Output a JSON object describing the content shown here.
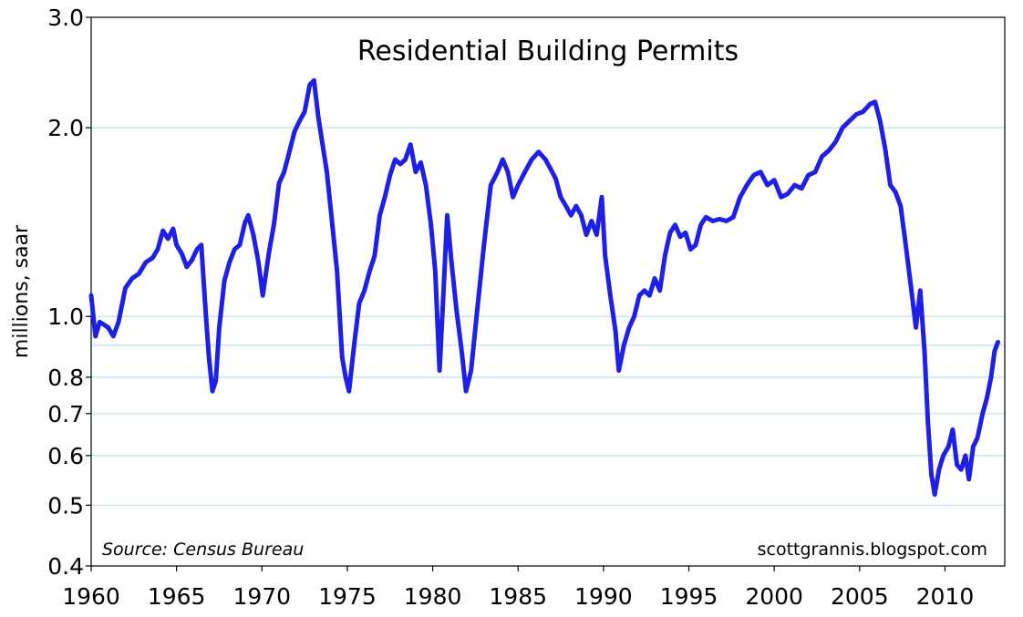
{
  "chart_data": {
    "type": "line",
    "title": "Residential Building Permits",
    "ylabel": "millions, saar",
    "xlabel": "",
    "source": "Source: Census Bureau",
    "credit": "scottgrannis.blogspot.com",
    "y_scale": "log",
    "ylim": [
      0.4,
      3.0
    ],
    "xlim": [
      1960,
      2013.5
    ],
    "y_ticks": [
      {
        "value": 0.4,
        "label": "0.4"
      },
      {
        "value": 0.5,
        "label": "0.5"
      },
      {
        "value": 0.6,
        "label": "0.6"
      },
      {
        "value": 0.7,
        "label": "0.7"
      },
      {
        "value": 0.8,
        "label": "0.8"
      },
      {
        "value": 1.0,
        "label": "1.0"
      },
      {
        "value": 2.0,
        "label": "2.0"
      },
      {
        "value": 3.0,
        "label": "3.0"
      }
    ],
    "gridlines": [
      0.5,
      0.6,
      0.7,
      0.8,
      0.9,
      1.0,
      2.0
    ],
    "x_ticks": [
      {
        "value": 1960,
        "label": "1960"
      },
      {
        "value": 1965,
        "label": "1965"
      },
      {
        "value": 1970,
        "label": "1970"
      },
      {
        "value": 1975,
        "label": "1975"
      },
      {
        "value": 1980,
        "label": "1980"
      },
      {
        "value": 1985,
        "label": "1985"
      },
      {
        "value": 1990,
        "label": "1990"
      },
      {
        "value": 1995,
        "label": "1995"
      },
      {
        "value": 2000,
        "label": "2000"
      },
      {
        "value": 2005,
        "label": "2005"
      },
      {
        "value": 2010,
        "label": "2010"
      }
    ],
    "grid": true,
    "line_color": "#1f1fe6",
    "grid_color": "#b9e4ee",
    "series": [
      {
        "values": [
          [
            1960.0,
            1.08
          ],
          [
            1960.25,
            0.93
          ],
          [
            1960.5,
            0.98
          ],
          [
            1961.0,
            0.96
          ],
          [
            1961.3,
            0.93
          ],
          [
            1961.6,
            0.98
          ],
          [
            1962.0,
            1.11
          ],
          [
            1962.4,
            1.15
          ],
          [
            1962.8,
            1.17
          ],
          [
            1963.2,
            1.22
          ],
          [
            1963.6,
            1.24
          ],
          [
            1963.9,
            1.28
          ],
          [
            1964.2,
            1.37
          ],
          [
            1964.5,
            1.33
          ],
          [
            1964.8,
            1.38
          ],
          [
            1965.0,
            1.3
          ],
          [
            1965.3,
            1.26
          ],
          [
            1965.6,
            1.2
          ],
          [
            1965.9,
            1.23
          ],
          [
            1966.2,
            1.28
          ],
          [
            1966.45,
            1.3
          ],
          [
            1966.7,
            1.02
          ],
          [
            1966.9,
            0.86
          ],
          [
            1967.1,
            0.76
          ],
          [
            1967.3,
            0.79
          ],
          [
            1967.5,
            0.96
          ],
          [
            1967.8,
            1.14
          ],
          [
            1968.1,
            1.22
          ],
          [
            1968.4,
            1.28
          ],
          [
            1968.7,
            1.3
          ],
          [
            1969.0,
            1.41
          ],
          [
            1969.2,
            1.45
          ],
          [
            1969.5,
            1.35
          ],
          [
            1969.8,
            1.22
          ],
          [
            1970.05,
            1.08
          ],
          [
            1970.4,
            1.26
          ],
          [
            1970.7,
            1.4
          ],
          [
            1971.0,
            1.63
          ],
          [
            1971.3,
            1.7
          ],
          [
            1971.6,
            1.83
          ],
          [
            1971.9,
            1.97
          ],
          [
            1972.2,
            2.05
          ],
          [
            1972.5,
            2.12
          ],
          [
            1972.8,
            2.34
          ],
          [
            1973.05,
            2.38
          ],
          [
            1973.3,
            2.08
          ],
          [
            1973.55,
            1.88
          ],
          [
            1973.8,
            1.7
          ],
          [
            1974.1,
            1.42
          ],
          [
            1974.4,
            1.18
          ],
          [
            1974.7,
            0.86
          ],
          [
            1974.9,
            0.8
          ],
          [
            1975.1,
            0.76
          ],
          [
            1975.4,
            0.9
          ],
          [
            1975.7,
            1.05
          ],
          [
            1976.0,
            1.1
          ],
          [
            1976.3,
            1.18
          ],
          [
            1976.6,
            1.25
          ],
          [
            1976.9,
            1.45
          ],
          [
            1977.2,
            1.55
          ],
          [
            1977.5,
            1.68
          ],
          [
            1977.8,
            1.78
          ],
          [
            1978.1,
            1.75
          ],
          [
            1978.4,
            1.78
          ],
          [
            1978.7,
            1.88
          ],
          [
            1979.0,
            1.7
          ],
          [
            1979.3,
            1.76
          ],
          [
            1979.6,
            1.62
          ],
          [
            1979.9,
            1.4
          ],
          [
            1980.15,
            1.18
          ],
          [
            1980.4,
            0.82
          ],
          [
            1980.6,
            1.05
          ],
          [
            1980.85,
            1.45
          ],
          [
            1981.1,
            1.22
          ],
          [
            1981.4,
            1.02
          ],
          [
            1981.7,
            0.88
          ],
          [
            1981.95,
            0.76
          ],
          [
            1982.25,
            0.82
          ],
          [
            1982.6,
            1.02
          ],
          [
            1983.0,
            1.3
          ],
          [
            1983.4,
            1.62
          ],
          [
            1983.8,
            1.7
          ],
          [
            1984.1,
            1.78
          ],
          [
            1984.4,
            1.7
          ],
          [
            1984.7,
            1.55
          ],
          [
            1985.0,
            1.62
          ],
          [
            1985.4,
            1.7
          ],
          [
            1985.8,
            1.78
          ],
          [
            1986.2,
            1.83
          ],
          [
            1986.6,
            1.78
          ],
          [
            1986.9,
            1.72
          ],
          [
            1987.2,
            1.66
          ],
          [
            1987.5,
            1.55
          ],
          [
            1987.8,
            1.5
          ],
          [
            1988.1,
            1.45
          ],
          [
            1988.4,
            1.5
          ],
          [
            1988.7,
            1.45
          ],
          [
            1989.0,
            1.35
          ],
          [
            1989.3,
            1.42
          ],
          [
            1989.6,
            1.35
          ],
          [
            1989.9,
            1.55
          ],
          [
            1990.1,
            1.25
          ],
          [
            1990.4,
            1.08
          ],
          [
            1990.7,
            0.95
          ],
          [
            1990.9,
            0.82
          ],
          [
            1991.2,
            0.9
          ],
          [
            1991.5,
            0.96
          ],
          [
            1991.8,
            1.0
          ],
          [
            1992.1,
            1.08
          ],
          [
            1992.4,
            1.1
          ],
          [
            1992.7,
            1.08
          ],
          [
            1993.0,
            1.15
          ],
          [
            1993.3,
            1.1
          ],
          [
            1993.6,
            1.25
          ],
          [
            1993.9,
            1.36
          ],
          [
            1994.2,
            1.4
          ],
          [
            1994.5,
            1.34
          ],
          [
            1994.8,
            1.36
          ],
          [
            1995.1,
            1.28
          ],
          [
            1995.4,
            1.3
          ],
          [
            1995.7,
            1.4
          ],
          [
            1996.0,
            1.44
          ],
          [
            1996.4,
            1.42
          ],
          [
            1996.8,
            1.43
          ],
          [
            1997.2,
            1.42
          ],
          [
            1997.6,
            1.44
          ],
          [
            1998.0,
            1.55
          ],
          [
            1998.4,
            1.62
          ],
          [
            1998.8,
            1.68
          ],
          [
            1999.2,
            1.7
          ],
          [
            1999.6,
            1.62
          ],
          [
            2000.0,
            1.65
          ],
          [
            2000.4,
            1.55
          ],
          [
            2000.8,
            1.57
          ],
          [
            2001.2,
            1.62
          ],
          [
            2001.6,
            1.6
          ],
          [
            2002.0,
            1.68
          ],
          [
            2002.4,
            1.7
          ],
          [
            2002.8,
            1.8
          ],
          [
            2003.2,
            1.84
          ],
          [
            2003.6,
            1.9
          ],
          [
            2004.0,
            2.0
          ],
          [
            2004.4,
            2.05
          ],
          [
            2004.8,
            2.1
          ],
          [
            2005.2,
            2.12
          ],
          [
            2005.6,
            2.18
          ],
          [
            2005.9,
            2.2
          ],
          [
            2006.2,
            2.05
          ],
          [
            2006.5,
            1.85
          ],
          [
            2006.8,
            1.62
          ],
          [
            2007.1,
            1.58
          ],
          [
            2007.4,
            1.5
          ],
          [
            2007.7,
            1.3
          ],
          [
            2008.0,
            1.12
          ],
          [
            2008.3,
            0.96
          ],
          [
            2008.55,
            1.1
          ],
          [
            2008.8,
            0.88
          ],
          [
            2009.0,
            0.68
          ],
          [
            2009.2,
            0.56
          ],
          [
            2009.4,
            0.52
          ],
          [
            2009.65,
            0.57
          ],
          [
            2009.9,
            0.6
          ],
          [
            2010.2,
            0.62
          ],
          [
            2010.45,
            0.66
          ],
          [
            2010.7,
            0.58
          ],
          [
            2010.95,
            0.57
          ],
          [
            2011.2,
            0.6
          ],
          [
            2011.4,
            0.55
          ],
          [
            2011.65,
            0.62
          ],
          [
            2011.9,
            0.64
          ],
          [
            2012.2,
            0.7
          ],
          [
            2012.45,
            0.74
          ],
          [
            2012.7,
            0.8
          ],
          [
            2012.9,
            0.88
          ],
          [
            2013.1,
            0.91
          ]
        ]
      }
    ]
  }
}
